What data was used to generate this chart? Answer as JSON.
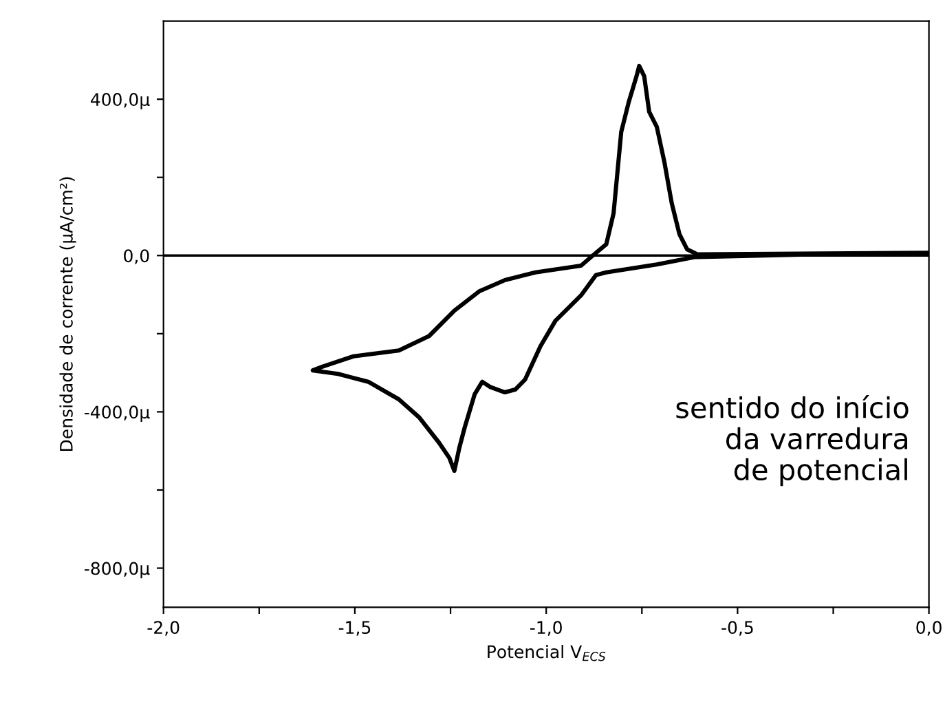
{
  "chart_data": {
    "type": "line",
    "xlabel": "Potencial V$_{ECS}$",
    "ylabel": "Densidade de corrente (µA/cm²)",
    "xlim": [
      -2.0,
      0.0
    ],
    "ylim": [
      -900,
      600
    ],
    "xticks": [
      {
        "value": -2.0,
        "label": "-2,0"
      },
      {
        "value": -1.75,
        "label": null
      },
      {
        "value": -1.5,
        "label": "-1,5"
      },
      {
        "value": -1.25,
        "label": null
      },
      {
        "value": -1.0,
        "label": "-1,0"
      },
      {
        "value": -0.75,
        "label": null
      },
      {
        "value": -0.5,
        "label": "-0,5"
      },
      {
        "value": -0.25,
        "label": null
      },
      {
        "value": 0.0,
        "label": "0,0"
      }
    ],
    "yticks": [
      {
        "value": -800,
        "label": "-800,0µ"
      },
      {
        "value": -600,
        "label": null
      },
      {
        "value": -400,
        "label": "-400,0µ"
      },
      {
        "value": -200,
        "label": null
      },
      {
        "value": 0,
        "label": "0,0"
      },
      {
        "value": 200,
        "label": null
      },
      {
        "value": 400,
        "label": "400,0µ"
      }
    ],
    "ref_lines": [
      {
        "axis": "y",
        "value": 0,
        "color": "#000000"
      }
    ],
    "annotations": [
      "sentido do início\nda varredura\nde potencial"
    ],
    "grid": false,
    "legend": false,
    "marker": "none",
    "line_style": "solid",
    "series": [
      {
        "color": "#000000",
        "x": [
          0.0,
          -0.315,
          -0.612,
          -0.711,
          -0.843,
          -0.87,
          -0.909,
          -0.976,
          -1.015,
          -1.055,
          -1.081,
          -1.108,
          -1.147,
          -1.167,
          -1.187,
          -1.213,
          -1.227,
          -1.24,
          -1.253,
          -1.28,
          -1.332,
          -1.385,
          -1.465,
          -1.544,
          -1.61,
          -1.584,
          -1.504,
          -1.385,
          -1.306,
          -1.24,
          -1.174,
          -1.108,
          -1.028,
          -0.909,
          -0.883,
          -0.843,
          -0.824,
          -0.804,
          -0.784,
          -0.764,
          -0.757,
          -0.744,
          -0.731,
          -0.711,
          -0.691,
          -0.672,
          -0.652,
          -0.632,
          -0.605,
          0.0
        ],
        "values": [
          5,
          3,
          -4,
          -23,
          -43,
          -50,
          -102,
          -167,
          -232,
          -317,
          -343,
          -350,
          -336,
          -323,
          -355,
          -440,
          -492,
          -551,
          -518,
          -479,
          -414,
          -368,
          -323,
          -303,
          -294,
          -284,
          -258,
          -243,
          -206,
          -141,
          -91,
          -63,
          -43,
          -26,
          -4,
          29,
          108,
          316,
          394,
          459,
          485,
          459,
          368,
          329,
          238,
          134,
          55,
          16,
          3,
          7
        ]
      }
    ]
  }
}
